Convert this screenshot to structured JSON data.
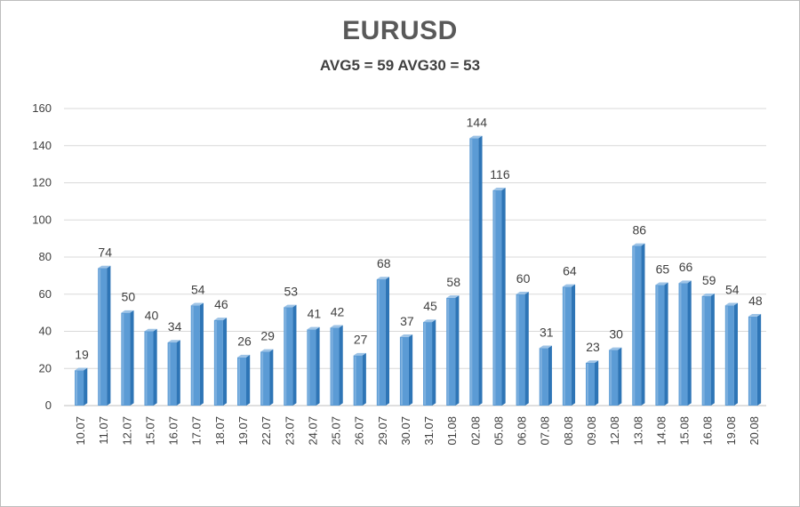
{
  "chart_data": {
    "type": "bar",
    "title": "EURUSD",
    "subtitle": "AVG5 = 59 AVG30 = 53",
    "xlabel": "",
    "ylabel": "",
    "ylim": [
      0,
      160
    ],
    "yticks": [
      0,
      20,
      40,
      60,
      80,
      100,
      120,
      140,
      160
    ],
    "grid": true,
    "legend": "none",
    "categories": [
      "10.07",
      "11.07",
      "12.07",
      "15.07",
      "16.07",
      "17.07",
      "18.07",
      "19.07",
      "22.07",
      "23.07",
      "24.07",
      "25.07",
      "26.07",
      "29.07",
      "30.07",
      "31.07",
      "01.08",
      "02.08",
      "05.08",
      "06.08",
      "07.08",
      "08.08",
      "09.08",
      "12.08",
      "13.08",
      "14.08",
      "15.08",
      "16.08",
      "19.08",
      "20.08"
    ],
    "values": [
      19,
      74,
      50,
      40,
      34,
      54,
      46,
      26,
      29,
      53,
      41,
      42,
      27,
      68,
      37,
      45,
      58,
      144,
      116,
      60,
      31,
      64,
      23,
      30,
      86,
      65,
      66,
      59,
      54,
      48
    ],
    "colors": {
      "bar_front": "#5b9bd5",
      "bar_light": "#9dc3e6",
      "bar_dark": "#2e75b6",
      "grid": "#d9d9d9",
      "text": "#404040"
    }
  }
}
